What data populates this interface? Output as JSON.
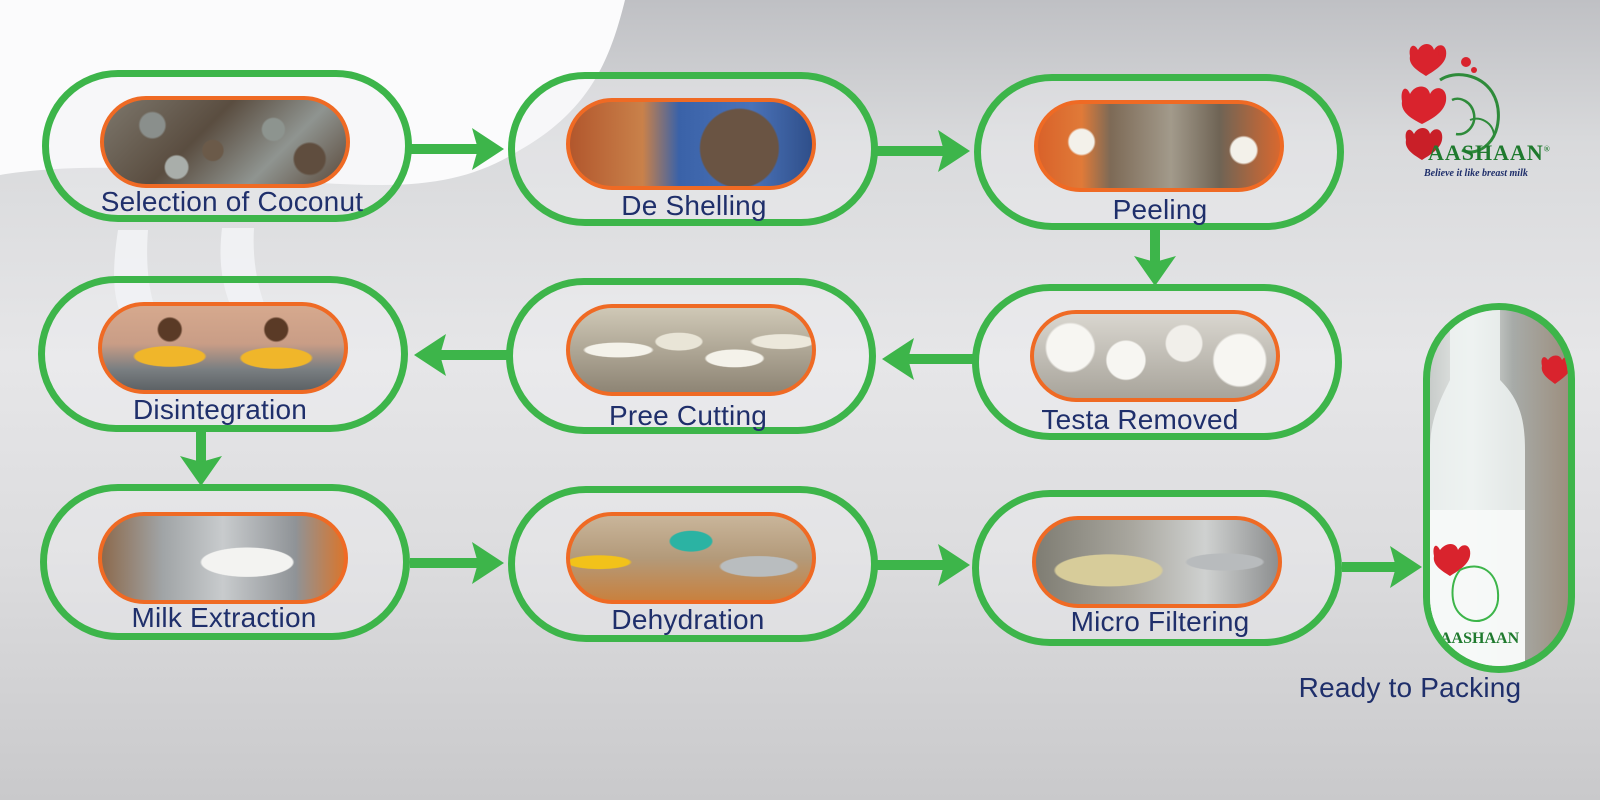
{
  "steps": [
    {
      "id": "selection",
      "label": "Selection of Coconut"
    },
    {
      "id": "deshelling",
      "label": "De Shelling"
    },
    {
      "id": "peeling",
      "label": "Peeling"
    },
    {
      "id": "testa",
      "label": "Testa Removed"
    },
    {
      "id": "cutting",
      "label": "Pree Cutting"
    },
    {
      "id": "disintegration",
      "label": "Disintegration"
    },
    {
      "id": "extraction",
      "label": "Milk Extraction"
    },
    {
      "id": "dehydration",
      "label": "Dehydration"
    },
    {
      "id": "filtering",
      "label": "Micro Filtering"
    },
    {
      "id": "packing",
      "label": "Ready to Packing"
    }
  ],
  "logo": {
    "brand": "AASHAAN",
    "registered": "®",
    "tagline": "Believe it like breast milk"
  },
  "bottle_label": {
    "text": "AASHAAN"
  },
  "colors": {
    "border": "#3db54a",
    "arrow": "#3db54a",
    "photo_border": "#ef6a24",
    "label_text": "#1f2f6b",
    "logo_text": "#1f7a2e",
    "heart": "#d9232d"
  },
  "icons": {
    "arrow": "arrow-icon",
    "heart": "heart-icon"
  }
}
